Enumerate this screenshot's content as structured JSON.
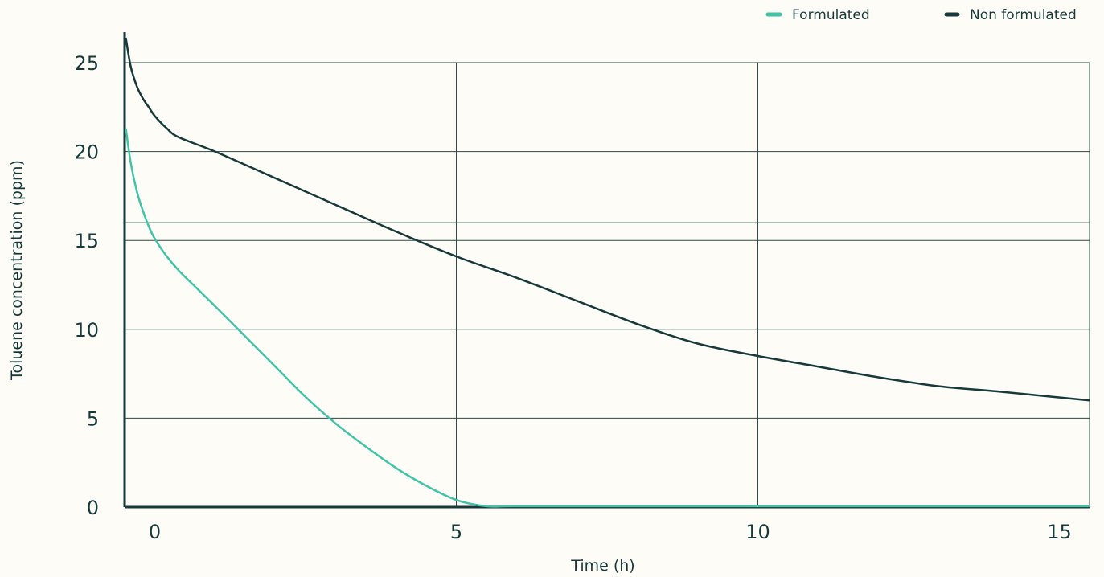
{
  "chart_data": {
    "type": "line",
    "title": "",
    "xlabel": "Time (h)",
    "ylabel": "Toluene concentration (ppm)",
    "xlim": [
      -0.5,
      15.5
    ],
    "ylim": [
      0,
      25
    ],
    "x_ticks": [
      0,
      5,
      10,
      15
    ],
    "y_ticks": [
      0,
      5,
      10,
      15,
      20,
      25
    ],
    "extra_hline": 16,
    "grid": true,
    "legend_position": "top-right",
    "series": [
      {
        "name": "Formulated",
        "color": "#40c4a6",
        "x": [
          -0.48,
          -0.4,
          -0.3,
          -0.2,
          -0.1,
          0.0,
          0.2,
          0.4,
          0.7,
          1.0,
          1.5,
          2.0,
          2.5,
          3.0,
          3.5,
          4.0,
          4.5,
          5.0,
          5.5,
          6.0,
          8.0,
          10.0,
          12.0,
          15.5
        ],
        "y": [
          21.3,
          19.4,
          17.8,
          16.7,
          15.8,
          15.1,
          14.1,
          13.3,
          12.3,
          11.3,
          9.6,
          7.9,
          6.2,
          4.7,
          3.4,
          2.2,
          1.2,
          0.4,
          0.05,
          0.05,
          0.05,
          0.05,
          0.05,
          0.05
        ]
      },
      {
        "name": "Non formulated",
        "color": "#16393a",
        "x": [
          -0.48,
          -0.4,
          -0.3,
          -0.2,
          -0.1,
          0.0,
          0.2,
          0.4,
          1.0,
          2.0,
          3.0,
          4.0,
          5.0,
          6.0,
          7.0,
          8.0,
          9.0,
          10.0,
          11.0,
          12.0,
          13.0,
          14.0,
          15.5
        ],
        "y": [
          26.4,
          24.8,
          23.7,
          23.0,
          22.5,
          22.0,
          21.3,
          20.8,
          20.0,
          18.5,
          17.0,
          15.5,
          14.1,
          12.9,
          11.6,
          10.3,
          9.2,
          8.5,
          7.9,
          7.3,
          6.8,
          6.5,
          6.0
        ]
      }
    ]
  }
}
